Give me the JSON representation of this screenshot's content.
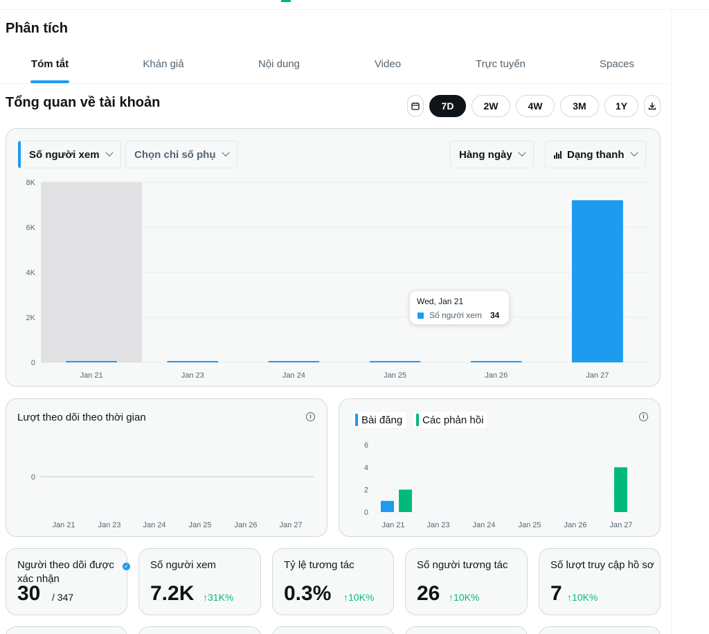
{
  "page": {
    "title": "Phân tích"
  },
  "tabs": [
    {
      "label": "Tóm tắt",
      "active": true
    },
    {
      "label": "Khán giả",
      "active": false
    },
    {
      "label": "Nội dung",
      "active": false
    },
    {
      "label": "Video",
      "active": false
    },
    {
      "label": "Trực tuyến",
      "active": false
    },
    {
      "label": "Spaces",
      "active": false
    }
  ],
  "overview": {
    "title": "Tổng quan về tài khoản",
    "ranges": [
      "7D",
      "2W",
      "4W",
      "3M",
      "1Y"
    ],
    "active_range": "7D",
    "calendar_icon": "calendar-icon",
    "download_icon": "download-icon"
  },
  "main_chart": {
    "primary_metric": "Số người xem",
    "secondary_metric": "Chọn chỉ số phụ",
    "interval": "Hàng ngày",
    "chart_style": "Dạng thanh",
    "tooltip": {
      "date": "Wed, Jan 21",
      "series": "Số người xem",
      "value": "34"
    }
  },
  "followers_chart": {
    "title": "Lượt theo dõi theo thời gian"
  },
  "posts_chart": {
    "legend": [
      "Bài đăng",
      "Các phản hồi"
    ]
  },
  "chart_data": [
    {
      "type": "bar",
      "categories": [
        "Jan 21",
        "Jan 23",
        "Jan 24",
        "Jan 25",
        "Jan 26",
        "Jan 27"
      ],
      "series": [
        {
          "name": "Số người xem",
          "values": [
            34,
            15,
            12,
            10,
            14,
            7200
          ]
        }
      ],
      "yticks": [
        "0",
        "2K",
        "4K",
        "6K",
        "8K"
      ],
      "ylim": [
        0,
        8000
      ],
      "highlight_category": "Jan 21",
      "grid": true,
      "colors": {
        "bar": "#1d9bf0",
        "highlight": "#e1e1e4"
      }
    },
    {
      "type": "line",
      "categories": [
        "Jan 21",
        "Jan 23",
        "Jan 24",
        "Jan 25",
        "Jan 26",
        "Jan 27"
      ],
      "series": [
        {
          "values": [
            0,
            0,
            0,
            0,
            0,
            0
          ]
        }
      ],
      "yticks": [
        "0"
      ],
      "grid": true,
      "colors": {
        "line": "#cfd9de"
      }
    },
    {
      "type": "bar",
      "categories": [
        "Jan 21",
        "Jan 23",
        "Jan 24",
        "Jan 25",
        "Jan 26",
        "Jan 27"
      ],
      "series": [
        {
          "name": "Bài đăng",
          "values": [
            1,
            0,
            0,
            0,
            0,
            0
          ]
        },
        {
          "name": "Các phản hồi",
          "values": [
            2,
            0,
            0,
            0,
            0,
            4
          ]
        }
      ],
      "yticks": [
        "0",
        "2",
        "4",
        "6"
      ],
      "ylim": [
        0,
        6
      ],
      "grid": true,
      "colors": {
        "Bài đăng": "#1d9bf0",
        "Các phản hồi": "#00ba7c"
      }
    }
  ],
  "metrics": [
    {
      "label": "Người theo dõi được xác nhận",
      "value": "30",
      "denominator": "/ 347"
    },
    {
      "label": "Số người xem",
      "value": "7.2K",
      "delta": "↑31K%"
    },
    {
      "label": "Tỷ lệ tương tác",
      "value": "0.3%",
      "delta": "↑10K%"
    },
    {
      "label": "Số người tương tác",
      "value": "26",
      "delta": "↑10K%"
    },
    {
      "label": "Số lượt truy cập hồ sơ",
      "value": "7",
      "delta": "↑10K%"
    }
  ],
  "colors": {
    "accent": "#1d9bf0",
    "positive": "#00ba7c",
    "text": "#0f1419",
    "muted": "#536471"
  }
}
